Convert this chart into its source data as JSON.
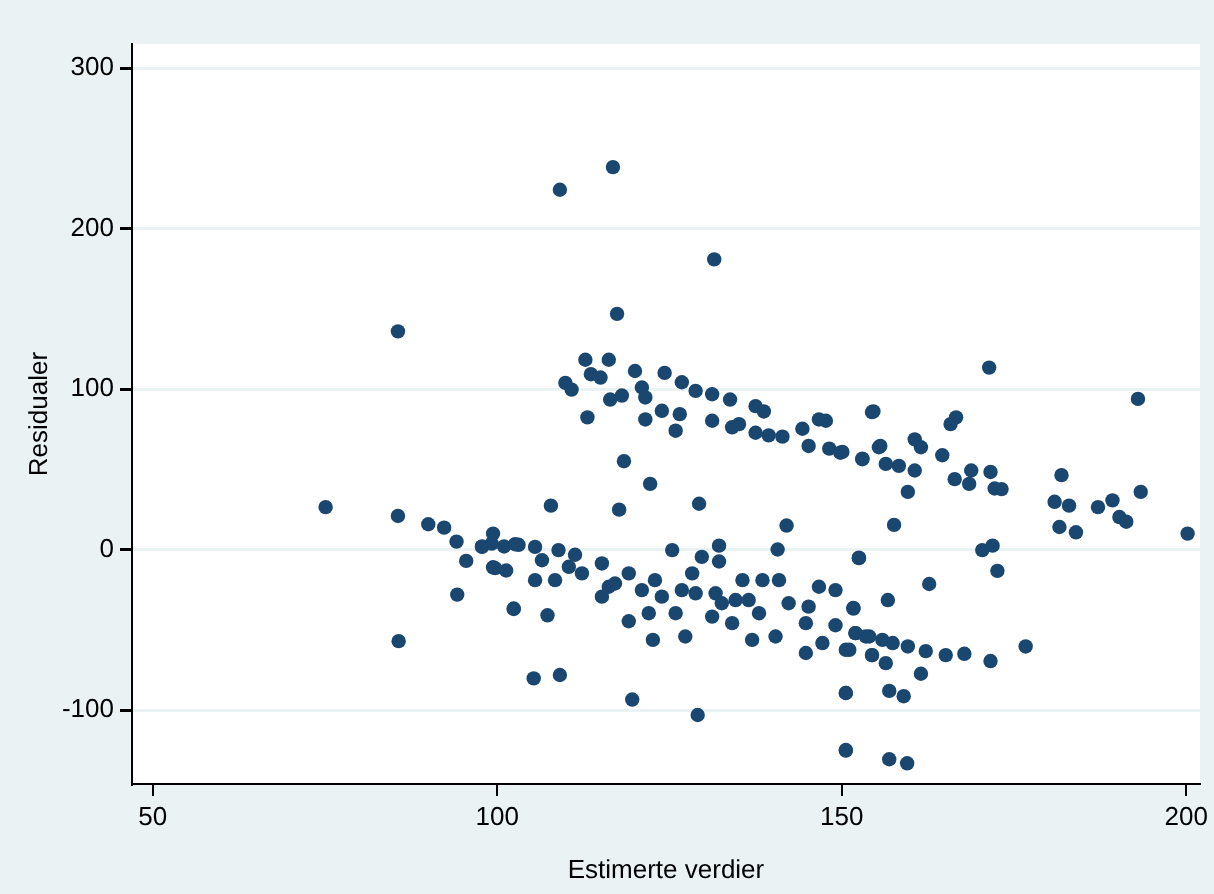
{
  "chart_data": {
    "type": "scatter",
    "xlabel": "Estimerte verdier",
    "ylabel": "Residualer",
    "xlim": [
      47,
      202
    ],
    "ylim": [
      -146,
      315
    ],
    "xticks": [
      50,
      100,
      150,
      200
    ],
    "yticks": [
      -100,
      0,
      100,
      200,
      300
    ],
    "grid": "y",
    "legend": false,
    "marker": "circle",
    "series": [
      {
        "color": "#1a476f",
        "x": [
          85.6,
          75.1,
          85.6,
          90.0,
          92.3,
          94.1,
          95.5,
          94.2,
          85.7,
          99.4,
          97.8,
          99.4,
          101.3,
          102.4,
          101,
          103.1,
          109.1,
          116.8,
          131.5,
          117.4,
          112.8,
          116.2,
          113.6,
          115.0,
          109.9,
          110.8,
          120.0,
          124.3,
          116.4,
          118.1,
          121.0,
          121.5,
          113.1,
          121.5,
          123.9,
          125.9,
          126.8,
          126.5,
          128.8,
          131.2,
          131.2,
          133.8,
          134.1,
          135.1,
          137.5,
          138.7,
          137.5,
          139.4,
          141.4,
          144.3,
          146.7,
          147.7,
          145.2,
          148.2,
          149.8,
          153.0,
          154.6,
          155.6,
          118.4,
          122.2,
          107.8,
          117.7,
          129.3,
          142.0,
          140.7,
          152.5,
          99.2,
          102.6,
          105.5,
          108.9,
          111.3,
          105.5,
          108.4,
          99.7,
          102.4,
          107.3,
          105.3,
          109.1,
          115.2,
          115.2,
          119.1,
          119.1,
          122.9,
          122.6,
          125.4,
          125.9,
          127.3,
          119.6,
          129.1,
          128.3,
          128.8,
          131.7,
          129.7,
          132.2,
          132.2,
          131.2,
          134.1,
          134.6,
          135.6,
          137.0,
          138.5,
          140.9,
          138.0,
          140.4,
          142.3,
          145.2,
          144.8,
          144.8,
          146.7,
          147.2,
          149.1,
          149.1,
          150.6,
          151.7,
          152.0,
          154.0,
          154.4,
          150.6,
          150.6,
          97.8,
          112.3,
          117.1,
          121,
          123.9,
          126.8,
          132.6,
          136.5,
          122,
          116.2,
          110.4,
          106.5,
          171.4,
          193.0,
          154.4,
          150.1,
          153,
          155.4,
          156.4,
          158.3,
          160.6,
          160.6,
          161.5,
          159.6,
          157.6,
          164.6,
          165.8,
          166.6,
          166.4,
          168.5,
          168.8,
          171.6,
          172.2,
          173.2,
          170.4,
          171.9,
          172.6,
          181.9,
          180.9,
          183.0,
          181.6,
          184.0,
          187.2,
          189.3,
          190.3,
          191.3,
          193.4,
          200.2,
          152.5,
          162.7,
          156.7,
          151.7,
          152.0,
          153.5,
          155.9,
          157.4,
          159.6,
          162.2,
          165.1,
          167.8,
          151.1,
          154.4,
          156.4,
          161.5,
          171.6,
          176.7,
          150.6,
          156.9,
          159.0,
          150.6,
          156.9,
          159.5
        ],
        "values": [
          136,
          26.5,
          21,
          15.8,
          13.7,
          5,
          -7,
          -28,
          -57,
          10,
          2,
          -11,
          -13,
          -37,
          2,
          3,
          224.2,
          238.3,
          180.8,
          146.9,
          118.3,
          118.3,
          109.3,
          107.2,
          103.9,
          99.7,
          111.3,
          110.1,
          93.5,
          96.0,
          101,
          94.8,
          82.4,
          81.1,
          86.5,
          74.1,
          104.3,
          84.4,
          98.9,
          96.8,
          80.3,
          93.5,
          76.2,
          78.2,
          89.4,
          86.1,
          72.8,
          71.2,
          70.4,
          75.3,
          81.1,
          80.3,
          64.6,
          62.9,
          60.4,
          56.3,
          86.1,
          64.6,
          55.1,
          41,
          27.4,
          24.9,
          28.6,
          15,
          0.1,
          -5,
          3.8,
          3.4,
          1.7,
          -0.3,
          -3.2,
          -19,
          -19,
          -11.5,
          -36.7,
          -40.9,
          -80.2,
          -78.1,
          -8.6,
          -29.3,
          -14.8,
          -44.6,
          -19,
          -56.2,
          -0.3,
          -39.6,
          -54.1,
          -93.4,
          -103,
          -14.8,
          -27.2,
          -27.2,
          -4.5,
          -7.4,
          2.5,
          -41.7,
          -45.8,
          -31.4,
          -19,
          -56.2,
          -19,
          -19,
          -39.6,
          -54.1,
          -33.4,
          -35.5,
          -45.8,
          -64.4,
          -23.1,
          -58.2,
          -25.2,
          -47.1,
          -62.4,
          -36.3,
          -52,
          -54.1,
          -65.7,
          -89.3,
          -124.8,
          1.7,
          -14.8,
          -21.1,
          -25.2,
          -29.3,
          -25.2,
          -33.4,
          -31.4,
          -39.6,
          -23.1,
          -10.7,
          -6.6,
          113.4,
          93.9,
          85.7,
          60.9,
          56.7,
          63.8,
          53.4,
          52.2,
          49.3,
          68.7,
          63.8,
          36.0,
          15.4,
          58.8,
          78.2,
          82.4,
          43.9,
          41,
          49.3,
          48.4,
          38.1,
          37.7,
          -0.3,
          2.5,
          -13.2,
          46.4,
          29.8,
          27.4,
          14.1,
          10.8,
          26.5,
          30.7,
          20.3,
          17.4,
          36.0,
          10,
          -5.3,
          -21.4,
          -31.4,
          -36.7,
          -52,
          -54.1,
          -56.2,
          -58.2,
          -60.3,
          -63.2,
          -65.7,
          -64.9,
          -62.4,
          -65.7,
          -70.7,
          -77.3,
          -69.4,
          -60.3,
          -89.3,
          -88.0,
          -91.3,
          -125.2,
          -130.6,
          -133.1
        ]
      }
    ]
  }
}
